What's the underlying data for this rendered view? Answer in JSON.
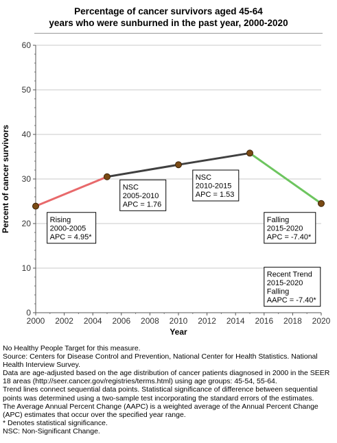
{
  "title_lines": [
    "Percentage of cancer survivors aged 45-64",
    "years who were sunburned in the past year, 2000-2020"
  ],
  "chart_data": {
    "type": "line",
    "title": "Percentage of cancer survivors aged 45-64 years who were sunburned in the past year, 2000-2020",
    "xlabel": "Year",
    "ylabel": "Percent of cancer survivors",
    "xlim": [
      2000,
      2020
    ],
    "ylim": [
      0,
      60
    ],
    "x_ticks": [
      2000,
      2002,
      2004,
      2006,
      2008,
      2010,
      2012,
      2014,
      2016,
      2018,
      2020
    ],
    "y_ticks": [
      0,
      10,
      20,
      30,
      40,
      50,
      60
    ],
    "grid": true,
    "points": [
      {
        "x": 2000,
        "y": 23.9
      },
      {
        "x": 2005,
        "y": 30.5
      },
      {
        "x": 2010,
        "y": 33.2
      },
      {
        "x": 2015,
        "y": 35.8
      },
      {
        "x": 2020,
        "y": 24.5
      }
    ],
    "segments": [
      {
        "from": 2000,
        "to": 2005,
        "color": "#e8696b",
        "status": "Rising"
      },
      {
        "from": 2005,
        "to": 2010,
        "color": "#404040",
        "status": "NSC"
      },
      {
        "from": 2010,
        "to": 2015,
        "color": "#404040",
        "status": "NSC"
      },
      {
        "from": 2015,
        "to": 2020,
        "color": "#6dc55f",
        "status": "Falling"
      }
    ],
    "point_color": "#7a4a14",
    "annotations": [
      {
        "anchor_x": 2000.8,
        "anchor_y": 22.5,
        "lines": [
          "Rising",
          "2000-2005",
          "APC =  4.95*"
        ]
      },
      {
        "anchor_x": 2005.9,
        "anchor_y": 29.8,
        "lines": [
          "NSC",
          "2005-2010",
          "APC =  1.76"
        ]
      },
      {
        "anchor_x": 2011.0,
        "anchor_y": 32.0,
        "lines": [
          "NSC",
          "2010-2015",
          "APC =  1.53"
        ]
      },
      {
        "anchor_x": 2016.0,
        "anchor_y": 22.5,
        "lines": [
          "Falling",
          "2015-2020",
          "APC = -7.40*"
        ]
      },
      {
        "anchor_x": 2016.0,
        "anchor_y": 10.2,
        "lines": [
          "Recent Trend",
          "2015-2020",
          "Falling",
          "AAPC = -7.40*"
        ]
      }
    ]
  },
  "notes": [
    "No Healthy People Target for this measure.",
    "Source: Centers for Disease Control and Prevention, National Center for Health Statistics. National Health Interview Survey.",
    "Data are age-adjusted based on the age distribution of cancer patients diagnosed in 2000 in the SEER 18 areas (http://seer.cancer.gov/registries/terms.html) using age groups: 45-54, 55-64.",
    "Trend lines connect sequential data points. Statistical significance of difference between sequential points was determined using a two-sample test incorporating the standard errors of the estimates.",
    "The Average Annual Percent Change (AAPC) is a weighted average of the Annual Percent Change (APC) estimates that occur over the specified year range.",
    "* Denotes statistical significance.",
    "NSC: Non-Significant Change."
  ]
}
